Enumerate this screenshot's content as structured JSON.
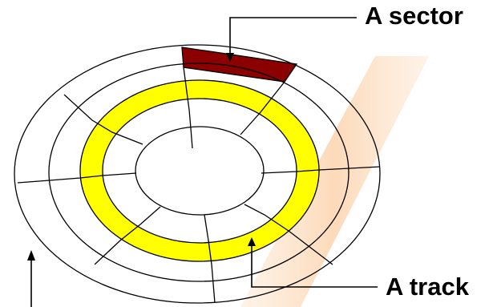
{
  "labels": {
    "sector": "A sector",
    "track": "A track"
  },
  "colors": {
    "background": "#ffffff",
    "outline": "#000000",
    "track_fill": "#ffff00",
    "sector_fill": "#8b0000",
    "watermark": "#fcd9b8"
  }
}
